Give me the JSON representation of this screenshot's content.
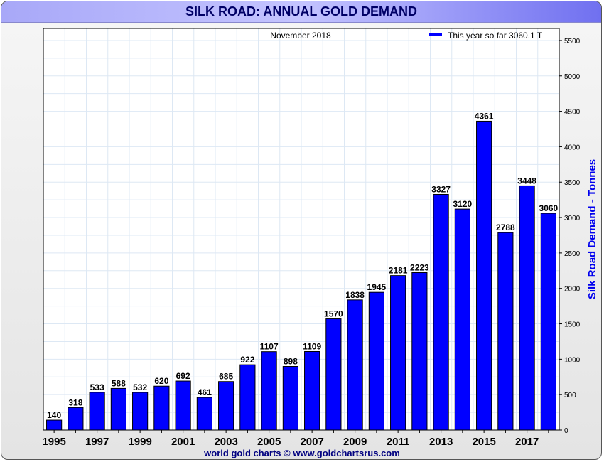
{
  "title": "SILK ROAD: ANNUAL GOLD DEMAND",
  "credit": "world gold charts © www.goldchartsrus.com",
  "chart_data": {
    "type": "bar",
    "subtitle": "November 2018",
    "legend": {
      "label": "This year so far 3060.1 T",
      "placement": "top-right"
    },
    "ylabel": "Silk Road Demand - Tonnes",
    "ylim": [
      0,
      5670
    ],
    "yticks": [
      0,
      500,
      1000,
      1500,
      2000,
      2500,
      3000,
      3500,
      4000,
      4500,
      5000,
      5500
    ],
    "y_axis_side": "right",
    "grid": true,
    "bar_color": "#0000ff",
    "categories": [
      "1995",
      "1996",
      "1997",
      "1998",
      "1999",
      "2000",
      "2001",
      "2002",
      "2003",
      "2004",
      "2005",
      "2006",
      "2007",
      "2008",
      "2009",
      "2010",
      "2011",
      "2012",
      "2013",
      "2014",
      "2015",
      "2016",
      "2017",
      "2018"
    ],
    "xtick_labels": [
      "1995",
      "1997",
      "1999",
      "2001",
      "2003",
      "2005",
      "2007",
      "2009",
      "2011",
      "2013",
      "2015",
      "2017"
    ],
    "values": [
      140,
      318,
      533,
      588,
      532,
      620,
      692,
      461,
      685,
      922,
      1107,
      898,
      1109,
      1570,
      1838,
      1945,
      2181,
      2223,
      3327,
      3120,
      4361,
      2788,
      3448,
      3060
    ]
  }
}
